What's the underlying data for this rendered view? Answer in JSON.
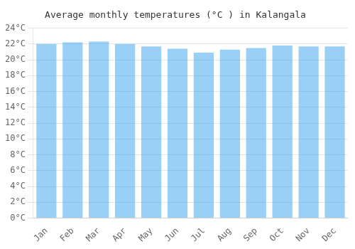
{
  "chart_data": {
    "type": "bar",
    "title": "Average monthly temperatures (°C ) in Kalangala",
    "categories": [
      "Jan",
      "Feb",
      "Mar",
      "Apr",
      "May",
      "Jun",
      "Jul",
      "Aug",
      "Sep",
      "Oct",
      "Nov",
      "Dec"
    ],
    "values": [
      22.0,
      22.2,
      22.3,
      22.0,
      21.7,
      21.4,
      20.9,
      21.3,
      21.5,
      21.8,
      21.7,
      21.7
    ],
    "ylim": [
      0,
      24
    ],
    "yticks": [
      {
        "value": 0,
        "label": "0°C"
      },
      {
        "value": 2,
        "label": "2°C"
      },
      {
        "value": 4,
        "label": "4°C"
      },
      {
        "value": 6,
        "label": "6°C"
      },
      {
        "value": 8,
        "label": "8°C"
      },
      {
        "value": 10,
        "label": "10°C"
      },
      {
        "value": 12,
        "label": "12°C"
      },
      {
        "value": 14,
        "label": "14°C"
      },
      {
        "value": 16,
        "label": "16°C"
      },
      {
        "value": 18,
        "label": "18°C"
      },
      {
        "value": 20,
        "label": "20°C"
      },
      {
        "value": 22,
        "label": "22°C"
      },
      {
        "value": 24,
        "label": "24°C"
      }
    ],
    "grid": true
  }
}
